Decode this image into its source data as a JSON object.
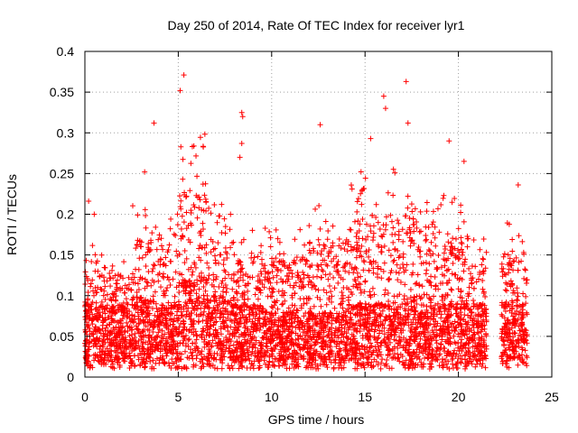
{
  "chart_data": {
    "type": "scatter",
    "title": "Day 250 of 2014, Rate Of TEC Index for receiver lyr1",
    "xlabel": "GPS time / hours",
    "ylabel": "ROTI / TECUs",
    "xlim": [
      0,
      25
    ],
    "ylim": [
      0,
      0.4
    ],
    "xticks": [
      0,
      5,
      10,
      15,
      20,
      25
    ],
    "xtick_labels": [
      "0",
      "5",
      "10",
      "15",
      "20",
      "25"
    ],
    "yticks": [
      0,
      0.05,
      0.1,
      0.15,
      0.2,
      0.25,
      0.3,
      0.35,
      0.4
    ],
    "ytick_labels": [
      "0",
      "0.05",
      "0.1",
      "0.15",
      "0.2",
      "0.25",
      "0.3",
      "0.35",
      "0.4"
    ],
    "grid": true,
    "marker": "+",
    "color": "#ff0000",
    "notable_points": [
      {
        "x": 5.3,
        "y": 0.371
      },
      {
        "x": 5.1,
        "y": 0.352
      },
      {
        "x": 17.2,
        "y": 0.363
      },
      {
        "x": 16.0,
        "y": 0.345
      },
      {
        "x": 16.1,
        "y": 0.33
      },
      {
        "x": 8.4,
        "y": 0.325
      },
      {
        "x": 8.45,
        "y": 0.32
      },
      {
        "x": 3.7,
        "y": 0.312
      },
      {
        "x": 12.6,
        "y": 0.31
      },
      {
        "x": 17.3,
        "y": 0.312
      },
      {
        "x": 19.5,
        "y": 0.29
      },
      {
        "x": 15.3,
        "y": 0.293
      },
      {
        "x": 8.4,
        "y": 0.287
      },
      {
        "x": 8.3,
        "y": 0.27
      },
      {
        "x": 20.3,
        "y": 0.265
      },
      {
        "x": 3.2,
        "y": 0.252
      },
      {
        "x": 23.2,
        "y": 0.236
      },
      {
        "x": 0.2,
        "y": 0.216
      },
      {
        "x": 0.5,
        "y": 0.2
      }
    ],
    "density_profile": [
      {
        "from": 0.0,
        "to": 1.0,
        "base": 0.05,
        "high": 0.16
      },
      {
        "from": 1.0,
        "to": 2.5,
        "base": 0.05,
        "high": 0.14
      },
      {
        "from": 2.5,
        "to": 4.0,
        "base": 0.06,
        "high": 0.2
      },
      {
        "from": 4.0,
        "to": 5.0,
        "base": 0.05,
        "high": 0.19
      },
      {
        "from": 5.0,
        "to": 6.5,
        "base": 0.08,
        "high": 0.28
      },
      {
        "from": 6.5,
        "to": 8.0,
        "base": 0.06,
        "high": 0.2
      },
      {
        "from": 8.0,
        "to": 9.5,
        "base": 0.05,
        "high": 0.17
      },
      {
        "from": 9.5,
        "to": 12.0,
        "base": 0.04,
        "high": 0.17
      },
      {
        "from": 12.0,
        "to": 14.0,
        "base": 0.04,
        "high": 0.2
      },
      {
        "from": 14.0,
        "to": 16.5,
        "base": 0.05,
        "high": 0.24
      },
      {
        "from": 16.5,
        "to": 18.5,
        "base": 0.06,
        "high": 0.25
      },
      {
        "from": 18.5,
        "to": 20.5,
        "base": 0.05,
        "high": 0.21
      },
      {
        "from": 20.5,
        "to": 21.5,
        "base": 0.05,
        "high": 0.16
      },
      {
        "from": 22.3,
        "to": 23.7,
        "base": 0.05,
        "high": 0.18
      }
    ]
  }
}
